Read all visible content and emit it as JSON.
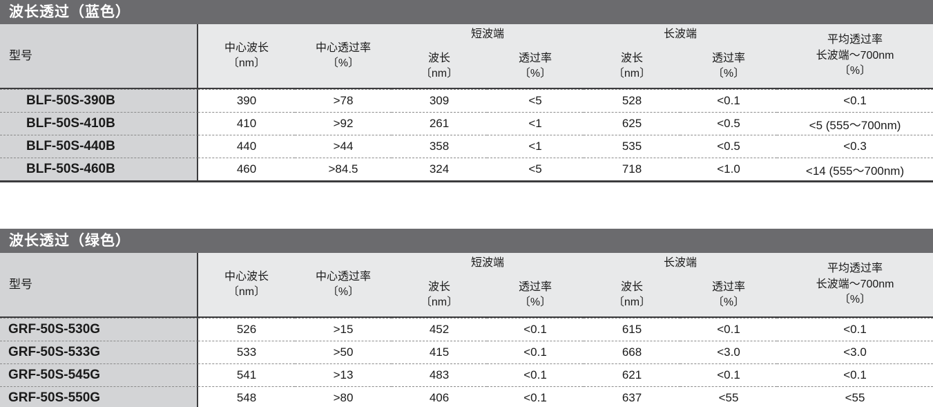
{
  "colors": {
    "title_bar_bg": "#6b6b6e",
    "title_text": "#ffffff",
    "model_column_bg": "#d3d4d6",
    "header_bg": "#e8e9ea",
    "rule_dark": "#3b3b3d",
    "rule_dashed": "#8a8a8a"
  },
  "shared_headers": {
    "model": "型号",
    "center_wavelength": "中心波长\n〔nm〕",
    "center_transmittance": "中心透过率\n〔%〕",
    "short_wave_group": "短波端",
    "long_wave_group": "长波端",
    "sub_wavelength": "波长\n〔nm〕",
    "sub_transmittance": "透过率\n〔%〕",
    "average_transmittance": "平均透过率\n长波端～700nm\n〔%〕"
  },
  "tables": [
    {
      "title": "波长透过（蓝色）",
      "rows": [
        [
          "BLF-50S-390B",
          "390",
          ">78",
          "309",
          "<5",
          "528",
          "<0.1",
          "<0.1"
        ],
        [
          "BLF-50S-410B",
          "410",
          ">92",
          "261",
          "<1",
          "625",
          "<0.5",
          "<5 (555～700nm)"
        ],
        [
          "BLF-50S-440B",
          "440",
          ">44",
          "358",
          "<1",
          "535",
          "<0.5",
          "<0.3"
        ],
        [
          "BLF-50S-460B",
          "460",
          ">84.5",
          "324",
          "<5",
          "718",
          "<1.0",
          "<14 (555～700nm)"
        ]
      ]
    },
    {
      "title": "波长透过（绿色）",
      "rows": [
        [
          "GRF-50S-530G",
          "526",
          ">15",
          "452",
          "<0.1",
          "615",
          "<0.1",
          "<0.1"
        ],
        [
          "GRF-50S-533G",
          "533",
          ">50",
          "415",
          "<0.1",
          "668",
          "<3.0",
          "<3.0"
        ],
        [
          "GRF-50S-545G",
          "541",
          ">13",
          "483",
          "<0.1",
          "621",
          "<0.1",
          "<0.1"
        ],
        [
          "GRF-50S-550G",
          "548",
          ">80",
          "406",
          "<0.1",
          "637",
          "<55",
          "<55"
        ]
      ]
    }
  ]
}
